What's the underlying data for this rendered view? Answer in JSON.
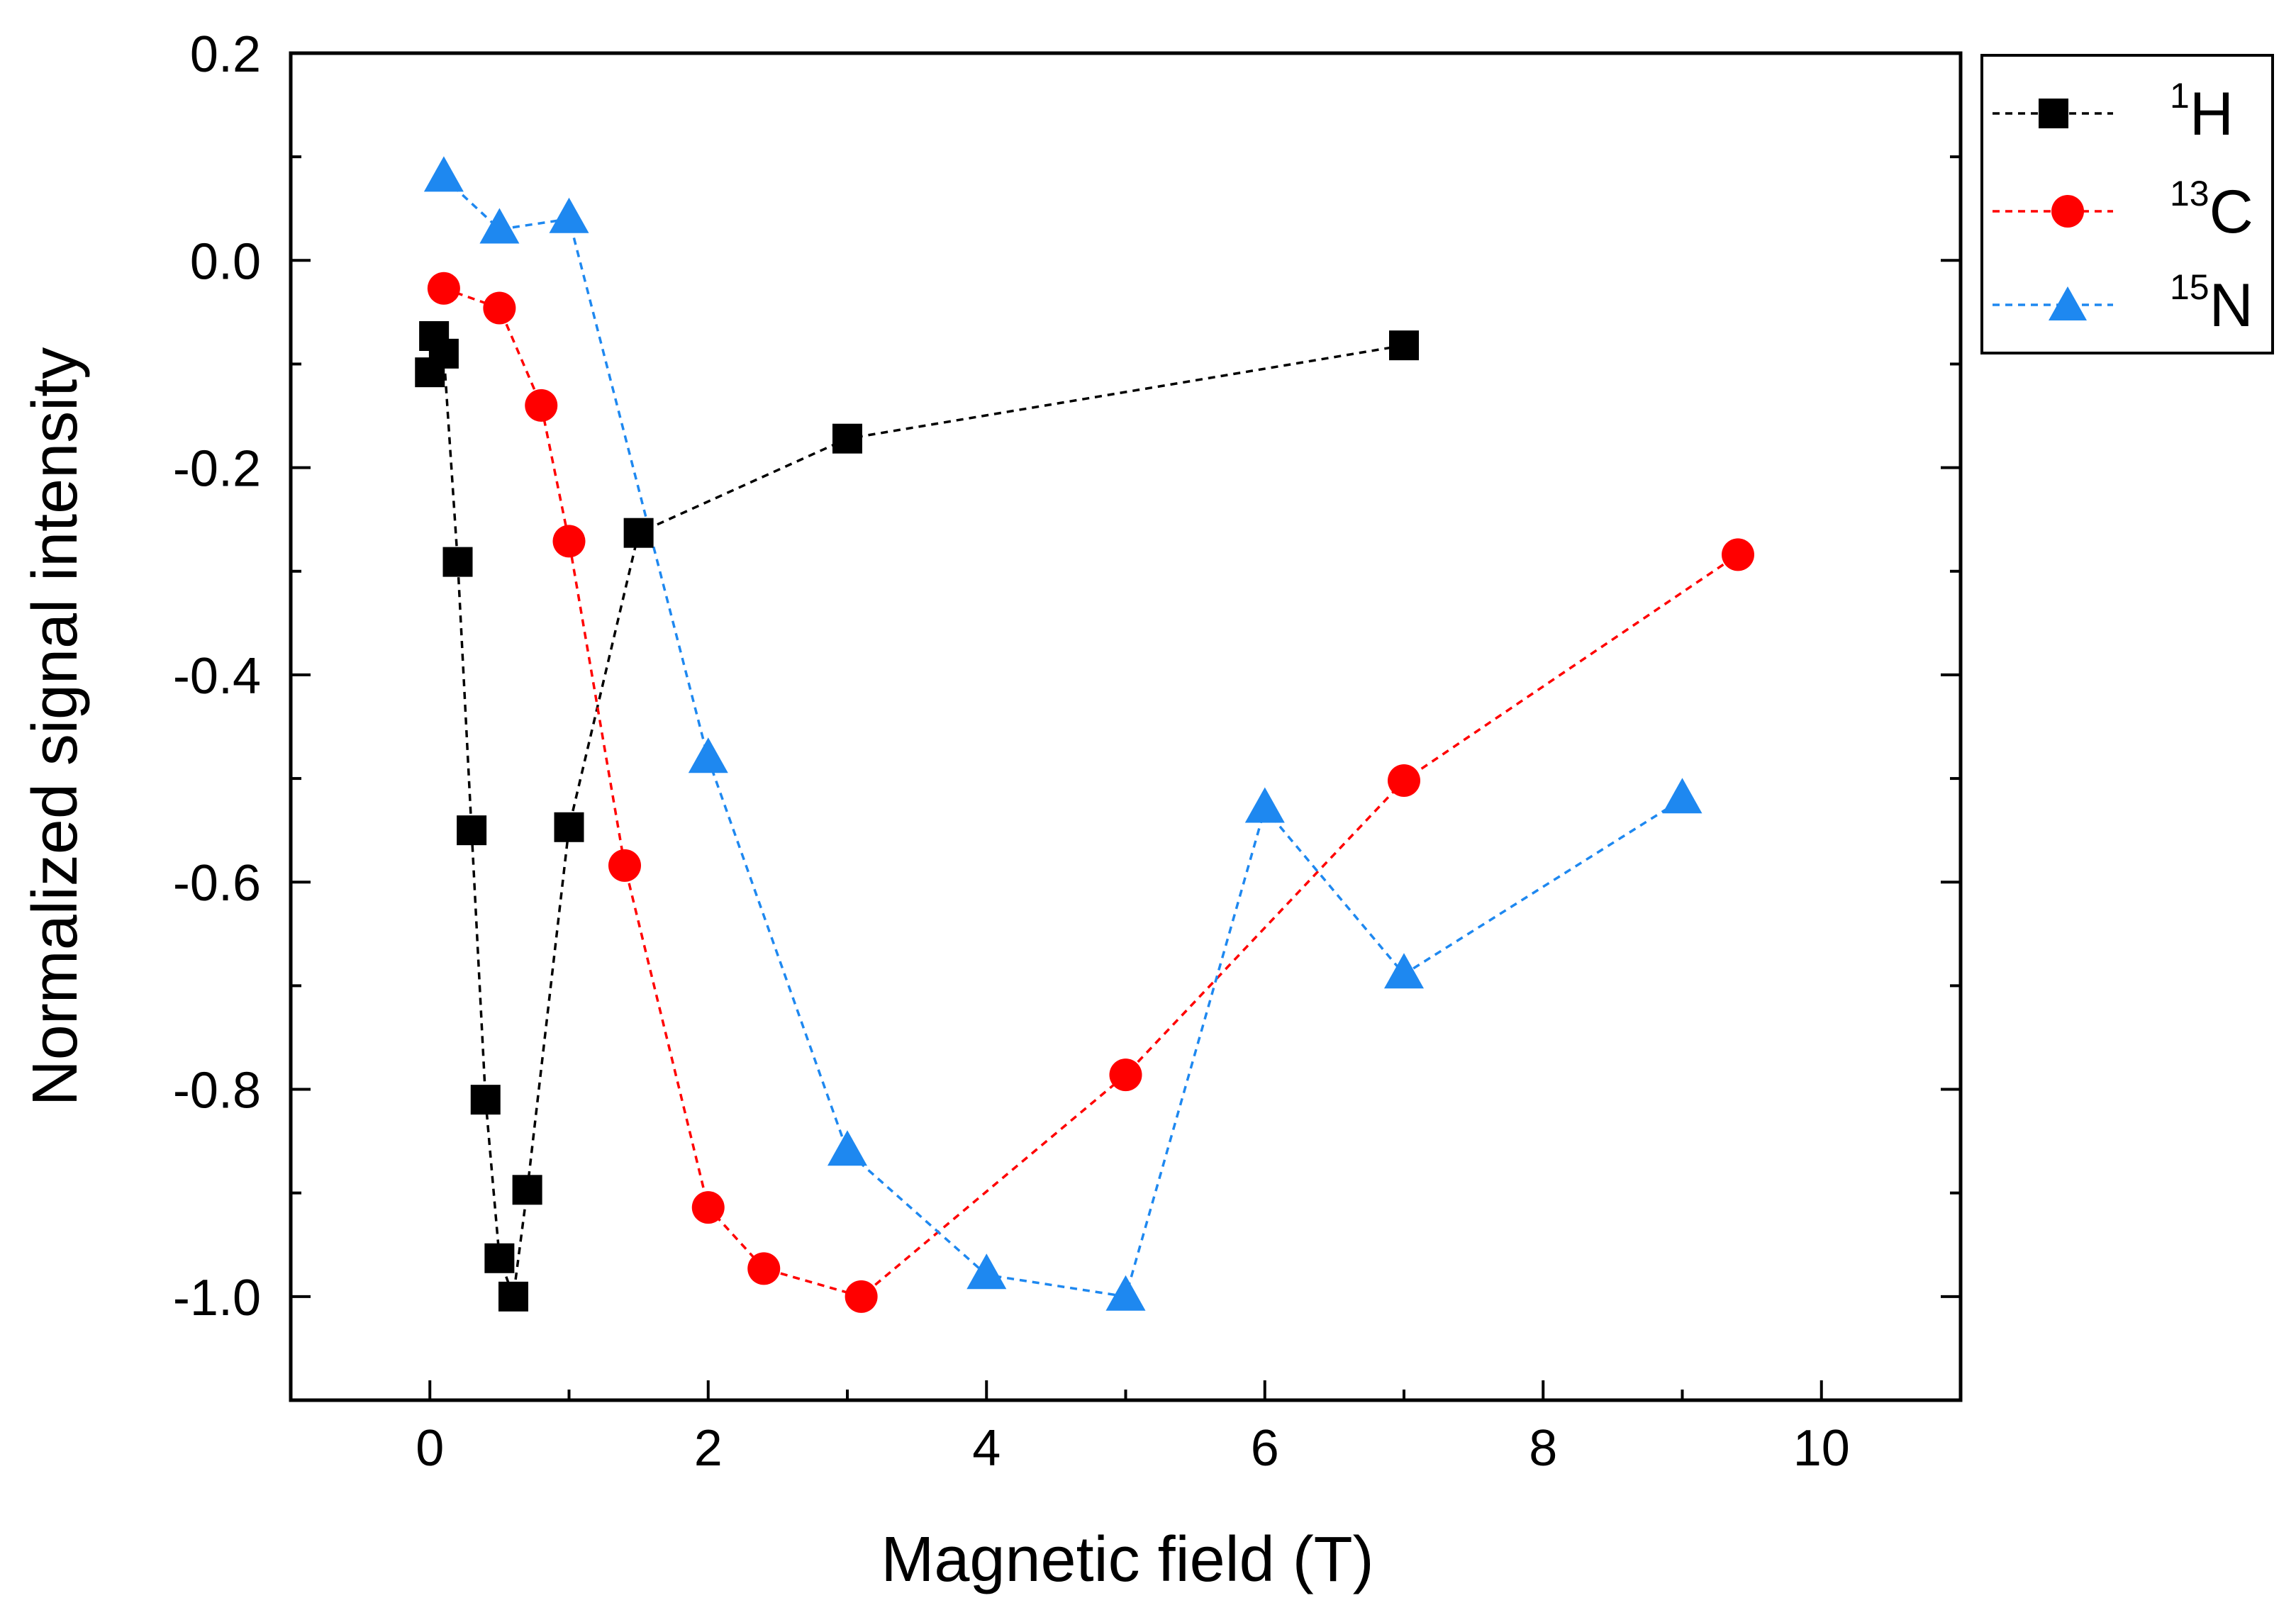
{
  "chart_data": {
    "type": "scatter",
    "title": "",
    "xlabel": "Magnetic field (T)",
    "ylabel": "Normalized signal intensity",
    "xlim": [
      -1,
      11
    ],
    "ylim": [
      -1.1,
      0.2
    ],
    "xticks": [
      0,
      2,
      4,
      6,
      8,
      10
    ],
    "xtick_labels": [
      "0",
      "2",
      "4",
      "6",
      "8",
      "10"
    ],
    "yticks": [
      0.2,
      0.0,
      -0.2,
      -0.4,
      -0.6,
      -0.8,
      -1.0
    ],
    "ytick_labels": [
      "0.2",
      "0.0",
      "-0.2",
      "-0.4",
      "-0.6",
      "-0.8",
      "-1.0"
    ],
    "grid": false,
    "legend_position": "top-right outside",
    "series": [
      {
        "name": "1H",
        "mass_number": "1",
        "element": "H",
        "marker": "square",
        "color": "#000000",
        "x": [
          0.0,
          0.03,
          0.1,
          0.2,
          0.3,
          0.4,
          0.5,
          0.6,
          0.7,
          1.0,
          1.5,
          3.0,
          7.0
        ],
        "y": [
          -0.108,
          -0.073,
          -0.09,
          -0.291,
          -0.55,
          -0.81,
          -0.963,
          -1.0,
          -0.897,
          -0.547,
          -0.263,
          -0.172,
          -0.082
        ]
      },
      {
        "name": "13C",
        "mass_number": "13",
        "element": "C",
        "marker": "circle",
        "color": "#ff0000",
        "x": [
          0.1,
          0.5,
          0.8,
          1.0,
          1.4,
          2.0,
          2.4,
          3.1,
          5.0,
          7.0,
          9.4
        ],
        "y": [
          -0.027,
          -0.046,
          -0.14,
          -0.271,
          -0.584,
          -0.914,
          -0.973,
          -1.0,
          -0.786,
          -0.502,
          -0.284
        ]
      },
      {
        "name": "15N",
        "mass_number": "15",
        "element": "N",
        "marker": "triangle",
        "color": "#1e88f0",
        "x": [
          0.1,
          0.5,
          1.0,
          2.0,
          3.0,
          4.0,
          5.0,
          6.0,
          7.0,
          9.0
        ],
        "y": [
          0.08,
          0.03,
          0.04,
          -0.481,
          -0.86,
          -0.979,
          -1.0,
          -0.529,
          -0.689,
          -0.52
        ]
      }
    ]
  }
}
